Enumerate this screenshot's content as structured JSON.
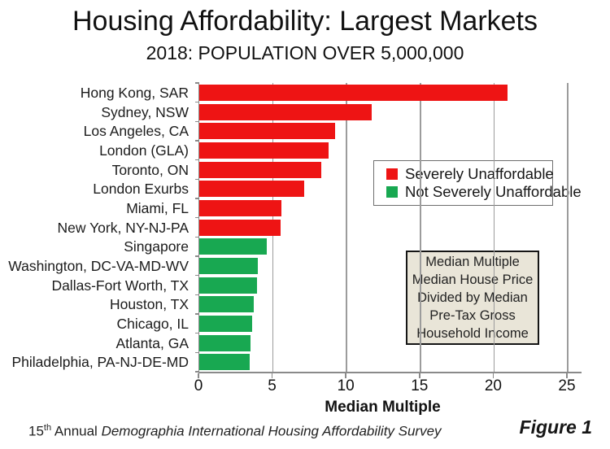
{
  "figure_label": "Figure 1",
  "footer": {
    "num": "15",
    "sup": "th",
    "annual": " Annual ",
    "survey": "Demographia International Housing Affordability Survey"
  },
  "annotation": {
    "lines": [
      "Median Multiple",
      "Median House Price",
      "Divided by Median",
      "Pre-Tax Gross",
      "Household Income"
    ]
  },
  "chart_data": {
    "type": "bar",
    "orientation": "horizontal",
    "title": "Housing Affordability: Largest Markets",
    "subtitle": "2018: POPULATION OVER 5,000,000",
    "xlabel": "Median Multiple",
    "xlim": [
      0,
      25
    ],
    "x_ticks": [
      0,
      5,
      10,
      15,
      20,
      25
    ],
    "grid": true,
    "legend_position": "upper-right-inside",
    "colors": {
      "severe": "#ee1414",
      "not_severe": "#18a851",
      "annotation_bg": "#e9e5d8"
    },
    "legend": [
      {
        "label": "Severely Unaffordable",
        "color": "#ee1414"
      },
      {
        "label": "Not Severely Unaffordable",
        "color": "#18a851"
      }
    ],
    "markets": [
      {
        "label": "Hong Kong, SAR",
        "value": 20.9,
        "severe": true
      },
      {
        "label": "Sydney, NSW",
        "value": 11.7,
        "severe": true
      },
      {
        "label": "Los Angeles, CA",
        "value": 9.2,
        "severe": true
      },
      {
        "label": "London (GLA)",
        "value": 8.8,
        "severe": true
      },
      {
        "label": "Toronto, ON",
        "value": 8.3,
        "severe": true
      },
      {
        "label": "London Exurbs",
        "value": 7.1,
        "severe": true
      },
      {
        "label": "Miami, FL",
        "value": 5.6,
        "severe": true
      },
      {
        "label": "New York, NY-NJ-PA",
        "value": 5.5,
        "severe": true
      },
      {
        "label": "Singapore",
        "value": 4.6,
        "severe": false
      },
      {
        "label": "Washington, DC-VA-MD-WV",
        "value": 4.0,
        "severe": false
      },
      {
        "label": "Dallas-Fort Worth, TX",
        "value": 3.9,
        "severe": false
      },
      {
        "label": "Houston, TX",
        "value": 3.7,
        "severe": false
      },
      {
        "label": "Chicago, IL",
        "value": 3.6,
        "severe": false
      },
      {
        "label": "Atlanta, GA",
        "value": 3.5,
        "severe": false
      },
      {
        "label": "Philadelphia, PA-NJ-DE-MD",
        "value": 3.4,
        "severe": false
      }
    ]
  }
}
